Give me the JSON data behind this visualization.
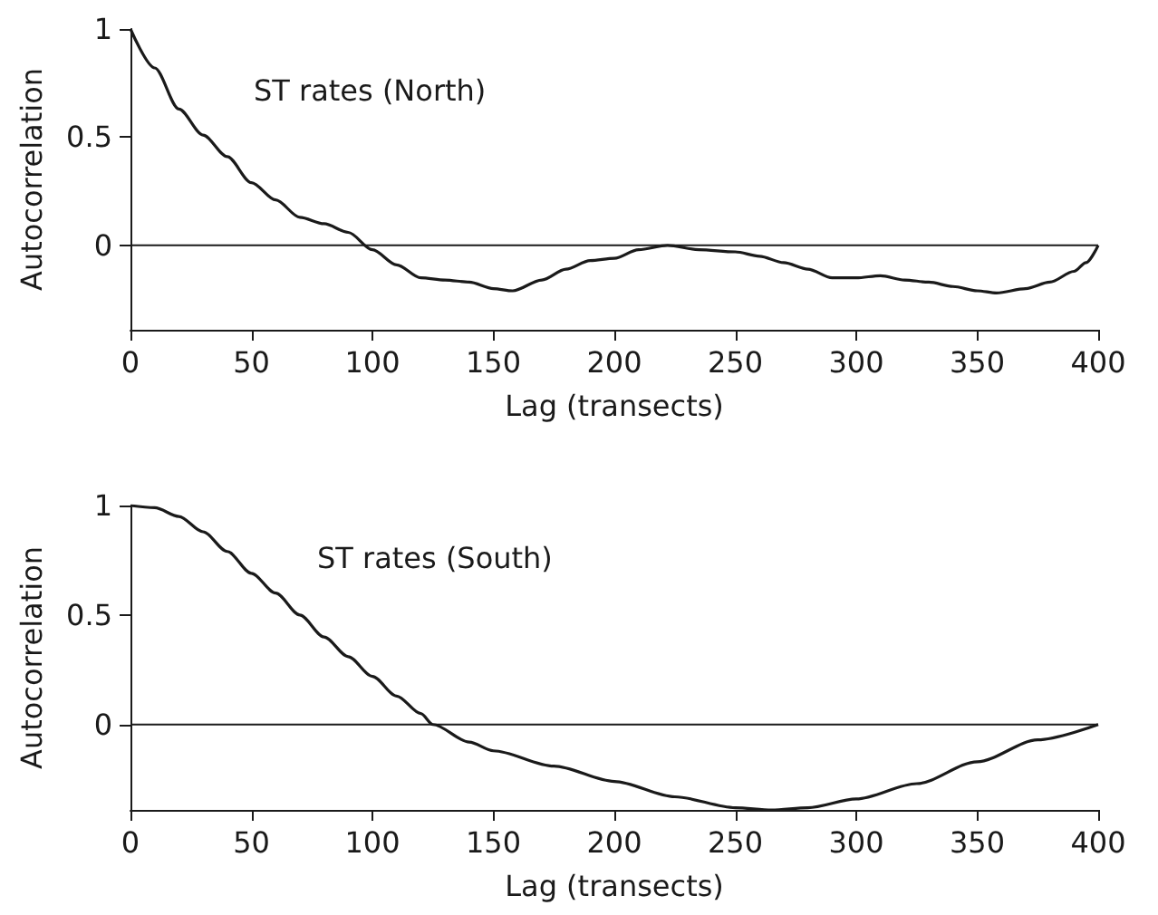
{
  "chart_data": [
    {
      "type": "line",
      "xlabel": "Lag (transects)",
      "ylabel": "Autocorrelation",
      "annotations": [
        "ST rates (North)"
      ],
      "x": [
        0,
        10,
        20,
        30,
        40,
        50,
        60,
        70,
        80,
        90,
        100,
        110,
        120,
        130,
        140,
        150,
        158,
        170,
        180,
        190,
        200,
        210,
        222,
        235,
        250,
        260,
        270,
        280,
        290,
        300,
        310,
        320,
        330,
        340,
        350,
        358,
        370,
        380,
        390,
        395,
        400
      ],
      "series": [
        {
          "color": "#1a1a1a",
          "values": [
            1,
            0.82,
            0.63,
            0.51,
            0.41,
            0.29,
            0.21,
            0.13,
            0.1,
            0.06,
            -0.02,
            -0.09,
            -0.15,
            -0.16,
            -0.17,
            -0.2,
            -0.21,
            -0.16,
            -0.11,
            -0.07,
            -0.06,
            -0.02,
            0,
            -0.02,
            -0.03,
            -0.05,
            -0.08,
            -0.11,
            -0.15,
            -0.15,
            -0.14,
            -0.16,
            -0.17,
            -0.19,
            -0.21,
            -0.22,
            -0.2,
            -0.17,
            -0.12,
            -0.08,
            0
          ]
        }
      ],
      "xlim": [
        0,
        400
      ],
      "xticks": [
        0,
        50,
        100,
        150,
        200,
        250,
        300,
        350,
        400
      ],
      "ylim": [
        -0.39,
        1
      ],
      "yticks": [
        0,
        0.5,
        1
      ],
      "ref_lines": [
        {
          "axis": "y",
          "value": 0,
          "color": "#1a1a1a"
        }
      ],
      "grid": false,
      "marker": "none",
      "line_style": "solid"
    },
    {
      "type": "line",
      "xlabel": "Lag (transects)",
      "ylabel": "Autocorrelation",
      "annotations": [
        "ST rates (South)"
      ],
      "x": [
        0,
        10,
        20,
        30,
        40,
        50,
        60,
        70,
        80,
        90,
        100,
        110,
        120,
        125,
        140,
        150,
        175,
        200,
        225,
        250,
        265,
        280,
        300,
        325,
        350,
        375,
        400
      ],
      "series": [
        {
          "color": "#1a1a1a",
          "values": [
            1,
            0.99,
            0.95,
            0.88,
            0.79,
            0.69,
            0.6,
            0.5,
            0.4,
            0.31,
            0.22,
            0.13,
            0.05,
            0,
            -0.08,
            -0.12,
            -0.19,
            -0.26,
            -0.33,
            -0.38,
            -0.39,
            -0.38,
            -0.34,
            -0.27,
            -0.17,
            -0.07,
            0
          ]
        }
      ],
      "xlim": [
        0,
        400
      ],
      "xticks": [
        0,
        50,
        100,
        150,
        200,
        250,
        300,
        350,
        400
      ],
      "ylim": [
        -0.39,
        1
      ],
      "yticks": [
        0,
        0.5,
        1
      ],
      "ref_lines": [
        {
          "axis": "y",
          "value": 0,
          "color": "#1a1a1a"
        }
      ],
      "grid": false,
      "marker": "none",
      "line_style": "solid"
    }
  ]
}
